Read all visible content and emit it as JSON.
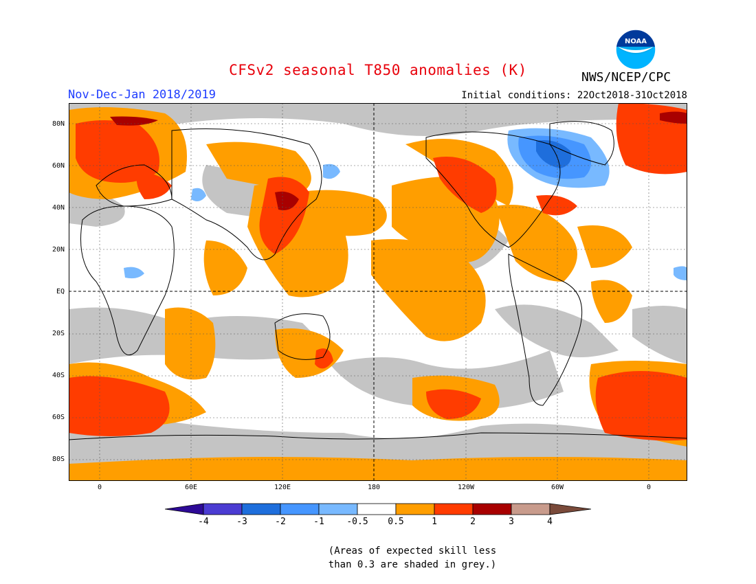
{
  "header": {
    "title": "CFSv2 seasonal T850 anomalies (K)",
    "agency": "NWS/NCEP/CPC",
    "period": "Nov-Dec-Jan 2018/2019",
    "initial_conditions": "Initial conditions: 22Oct2018-31Oct2018",
    "logo_text": "NOAA"
  },
  "colors": {
    "title": "#e8000b",
    "period": "#1e3cff",
    "skill_grey": "#c4c4c4",
    "pos_0_5_1": "#ff9e00",
    "pos_1_2": "#ff3c00",
    "pos_2_3": "#a80000",
    "pos_3_4": "#c89b8c",
    "pos_gt4": "#7a4a3a",
    "neg_0_5_1": "#78b9ff",
    "neg_1_2": "#4696ff",
    "neg_2_3": "#1e6edc",
    "neg_3_4": "#4b3cd2",
    "neg_lt4": "#2d0a96"
  },
  "map": {
    "lat_labels": [
      "80N",
      "60N",
      "40N",
      "20N",
      "EQ",
      "20S",
      "40S",
      "60S",
      "80S"
    ],
    "lon_labels": [
      "0",
      "60E",
      "120E",
      "180",
      "120W",
      "60W",
      "0"
    ]
  },
  "colorbar": {
    "tick_labels": [
      "-4",
      "-3",
      "-2",
      "-1",
      "-0.5",
      "0.5",
      "1",
      "2",
      "3",
      "4"
    ]
  },
  "note": {
    "line1": "(Areas of expected skill less",
    "line2": "than 0.3 are shaded in grey.)"
  }
}
